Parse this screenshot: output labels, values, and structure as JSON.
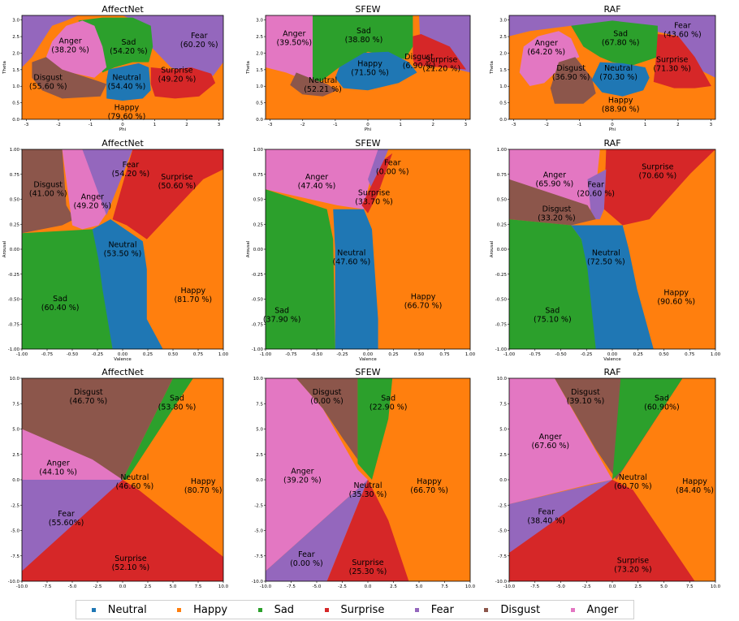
{
  "legend": [
    {
      "label": "Neutral",
      "color": "#1f77b4"
    },
    {
      "label": "Happy",
      "color": "#ff7f0e"
    },
    {
      "label": "Sad",
      "color": "#2ca02c"
    },
    {
      "label": "Surprise",
      "color": "#d62728"
    },
    {
      "label": "Fear",
      "color": "#9467bd"
    },
    {
      "label": "Disgust",
      "color": "#8c564b"
    },
    {
      "label": "Anger",
      "color": "#e377c2"
    }
  ],
  "chart_data": [
    {
      "type": "heatmap",
      "title": "AffectNet",
      "xlabel": "Phi",
      "ylabel": "Theta",
      "xlim": [
        -3.14,
        3.14
      ],
      "ylim": [
        0,
        3.14
      ],
      "xticks": [
        "-3",
        "-2",
        "-1",
        "0",
        "1",
        "2",
        "3"
      ],
      "yticks": [
        "0.0",
        "0.5",
        "1.0",
        "1.5",
        "2.0",
        "2.5",
        "3.0"
      ],
      "regions": [
        {
          "label": "Anger",
          "value": "(38.20 %)"
        },
        {
          "label": "Sad",
          "value": "(54.20 %)"
        },
        {
          "label": "Fear",
          "value": "(60.20 %)"
        },
        {
          "label": "Surprise",
          "value": "(49.20 %)"
        },
        {
          "label": "Disgust",
          "value": "(55.60 %)"
        },
        {
          "label": "Neutral",
          "value": "(54.40 %)"
        },
        {
          "label": "Happy",
          "value": "(79.60 %)"
        }
      ]
    },
    {
      "type": "heatmap",
      "title": "SFEW",
      "xlabel": "Phi",
      "ylabel": "Theta",
      "xlim": [
        -3.14,
        3.14
      ],
      "ylim": [
        0,
        3.14
      ],
      "xticks": [
        "-3",
        "-2",
        "-1",
        "0",
        "1",
        "2",
        "3"
      ],
      "yticks": [
        "0.0",
        "0.5",
        "1.0",
        "1.5",
        "2.0",
        "2.5",
        "3.0"
      ],
      "regions": [
        {
          "label": "Anger",
          "value": "(39.50%)"
        },
        {
          "label": "Sad",
          "value": "(38.80 %)"
        },
        {
          "label": "Surprise",
          "value": "(21.20 %)"
        },
        {
          "label": "Disgust",
          "value": "(6.90 %)"
        },
        {
          "label": "Neutral",
          "value": "(52.21 %)"
        },
        {
          "label": "Happy",
          "value": "(71.50 %)"
        }
      ]
    },
    {
      "type": "heatmap",
      "title": "RAF",
      "xlabel": "Phi",
      "ylabel": "Theta",
      "xlim": [
        -3.14,
        3.14
      ],
      "ylim": [
        0,
        3.14
      ],
      "xticks": [
        "-3",
        "-2",
        "-1",
        "0",
        "1",
        "2",
        "3"
      ],
      "yticks": [
        "0.0",
        "0.5",
        "1.0",
        "1.5",
        "2.0",
        "2.5",
        "3.0"
      ],
      "regions": [
        {
          "label": "Fear",
          "value": "(43.60 %)"
        },
        {
          "label": "Sad",
          "value": "(67.80 %)"
        },
        {
          "label": "Anger",
          "value": "(64.20 %)"
        },
        {
          "label": "Surprise",
          "value": "(71.30 %)"
        },
        {
          "label": "Neutral",
          "value": "(70.30 %)"
        },
        {
          "label": "Disgust",
          "value": "(36.90 %)"
        },
        {
          "label": "Happy",
          "value": "(88.90 %)"
        }
      ]
    },
    {
      "type": "heatmap",
      "title": "AffectNet",
      "xlabel": "Valence",
      "ylabel": "Arousal",
      "xlim": [
        -1,
        1
      ],
      "ylim": [
        -1,
        1
      ],
      "xticks": [
        "-1.00",
        "-0.75",
        "-0.50",
        "-0.25",
        "0.00",
        "0.25",
        "0.50",
        "0.75",
        "1.00"
      ],
      "yticks": [
        "-1.00",
        "-0.75",
        "-0.50",
        "-0.25",
        "0.00",
        "0.25",
        "0.50",
        "0.75",
        "1.00"
      ],
      "regions": [
        {
          "label": "Fear",
          "value": "(54.20 %)"
        },
        {
          "label": "Surprise",
          "value": "(50.60 %)"
        },
        {
          "label": "Disgust",
          "value": "(41.00 %)"
        },
        {
          "label": "Anger",
          "value": "(49.20 %)"
        },
        {
          "label": "Neutral",
          "value": "(53.50 %)"
        },
        {
          "label": "Sad",
          "value": "(60.40 %)"
        },
        {
          "label": "Happy",
          "value": "(81.70 %)"
        }
      ]
    },
    {
      "type": "heatmap",
      "title": "SFEW",
      "xlabel": "Valence",
      "ylabel": "Arousal",
      "xlim": [
        -1,
        1
      ],
      "ylim": [
        -1,
        1
      ],
      "xticks": [
        "-1.00",
        "-0.75",
        "-0.50",
        "-0.25",
        "0.00",
        "0.25",
        "0.50",
        "0.75",
        "1.00"
      ],
      "yticks": [
        "-1.00",
        "-0.75",
        "-0.50",
        "-0.25",
        "0.00",
        "0.25",
        "0.50",
        "0.75",
        "1.00"
      ],
      "regions": [
        {
          "label": "Fear",
          "value": "(0.00 %)"
        },
        {
          "label": "Anger",
          "value": "(47.40 %)"
        },
        {
          "label": "Surprise",
          "value": "(33.70 %)"
        },
        {
          "label": "Neutral",
          "value": "(47.60 %)"
        },
        {
          "label": "Sad",
          "value": "(37.90 %)"
        },
        {
          "label": "Happy",
          "value": "(66.70 %)"
        }
      ]
    },
    {
      "type": "heatmap",
      "title": "RAF",
      "xlabel": "Valence",
      "ylabel": "Arousal",
      "xlim": [
        -1,
        1
      ],
      "ylim": [
        -1,
        1
      ],
      "xticks": [
        "-1.00",
        "-0.75",
        "-0.50",
        "-0.25",
        "0.00",
        "0.25",
        "0.50",
        "0.75",
        "1.00"
      ],
      "yticks": [
        "-1.00",
        "-0.75",
        "-0.50",
        "-0.25",
        "0.00",
        "0.25",
        "0.50",
        "0.75",
        "1.00"
      ],
      "regions": [
        {
          "label": "Anger",
          "value": "(65.90 %)"
        },
        {
          "label": "Surprise",
          "value": "(70.60 %)"
        },
        {
          "label": "Fear",
          "value": "(20.60 %)"
        },
        {
          "label": "Disgust",
          "value": "(33.20 %)"
        },
        {
          "label": "Neutral",
          "value": "(72.50 %)"
        },
        {
          "label": "Sad",
          "value": "(75.10 %)"
        },
        {
          "label": "Happy",
          "value": "(90.60 %)"
        }
      ]
    },
    {
      "type": "heatmap",
      "title": "AffectNet",
      "xlabel": "",
      "ylabel": "",
      "xlim": [
        -10,
        10
      ],
      "ylim": [
        -10,
        10
      ],
      "xticks": [
        "-10.0",
        "-7.5",
        "-5.0",
        "-2.5",
        "0.0",
        "2.5",
        "5.0",
        "7.5",
        "10.0"
      ],
      "yticks": [
        "-10.0",
        "-7.5",
        "-5.0",
        "-2.5",
        "0.0",
        "2.5",
        "5.0",
        "7.5",
        "10.0"
      ],
      "regions": [
        {
          "label": "Disgust",
          "value": "(46.70 %)"
        },
        {
          "label": "Sad",
          "value": "(53.80 %)"
        },
        {
          "label": "Anger",
          "value": "(44.10 %)"
        },
        {
          "label": "Happy",
          "value": "(80.70 %)"
        },
        {
          "label": "Neutral",
          "value": "(46.60 %)"
        },
        {
          "label": "Fear",
          "value": "(55.60%)"
        },
        {
          "label": "Surprise",
          "value": "(52.10 %)"
        }
      ]
    },
    {
      "type": "heatmap",
      "title": "SFEW",
      "xlabel": "",
      "ylabel": "",
      "xlim": [
        -10,
        10
      ],
      "ylim": [
        -10,
        10
      ],
      "xticks": [
        "-10.0",
        "-7.5",
        "-5.0",
        "-2.5",
        "0.0",
        "2.5",
        "5.0",
        "7.5",
        "10.0"
      ],
      "yticks": [
        "-10.0",
        "-7.5",
        "-5.0",
        "-2.5",
        "0.0",
        "2.5",
        "5.0",
        "7.5",
        "10.0"
      ],
      "regions": [
        {
          "label": "Disgust",
          "value": "(0.00 %)"
        },
        {
          "label": "Sad",
          "value": "(22.90 %)"
        },
        {
          "label": "Anger",
          "value": "(39.20 %)"
        },
        {
          "label": "Happy",
          "value": "(66.70 %)"
        },
        {
          "label": "Neutral",
          "value": "(35.30 %)"
        },
        {
          "label": "Fear",
          "value": "(0.00 %)"
        },
        {
          "label": "Surprise",
          "value": "(25.30 %)"
        }
      ]
    },
    {
      "type": "heatmap",
      "title": "RAF",
      "xlabel": "",
      "ylabel": "",
      "xlim": [
        -10,
        10
      ],
      "ylim": [
        -10,
        10
      ],
      "xticks": [
        "-10.0",
        "-7.5",
        "-5.0",
        "-2.5",
        "0.0",
        "2.5",
        "5.0",
        "7.5",
        "10.0"
      ],
      "yticks": [
        "-10.0",
        "-7.5",
        "-5.0",
        "-2.5",
        "0.0",
        "2.5",
        "5.0",
        "7.5",
        "10.0"
      ],
      "regions": [
        {
          "label": "Disgust",
          "value": "(39.10 %)"
        },
        {
          "label": "Sad",
          "value": "(60.90%)"
        },
        {
          "label": "Anger",
          "value": "(67.60 %)"
        },
        {
          "label": "Happy",
          "value": "(84.40 %)"
        },
        {
          "label": "Neutral",
          "value": "(60.70 %)"
        },
        {
          "label": "Fear",
          "value": "(38.40 %)"
        },
        {
          "label": "Surprise",
          "value": "(73.20 %)"
        }
      ]
    }
  ]
}
